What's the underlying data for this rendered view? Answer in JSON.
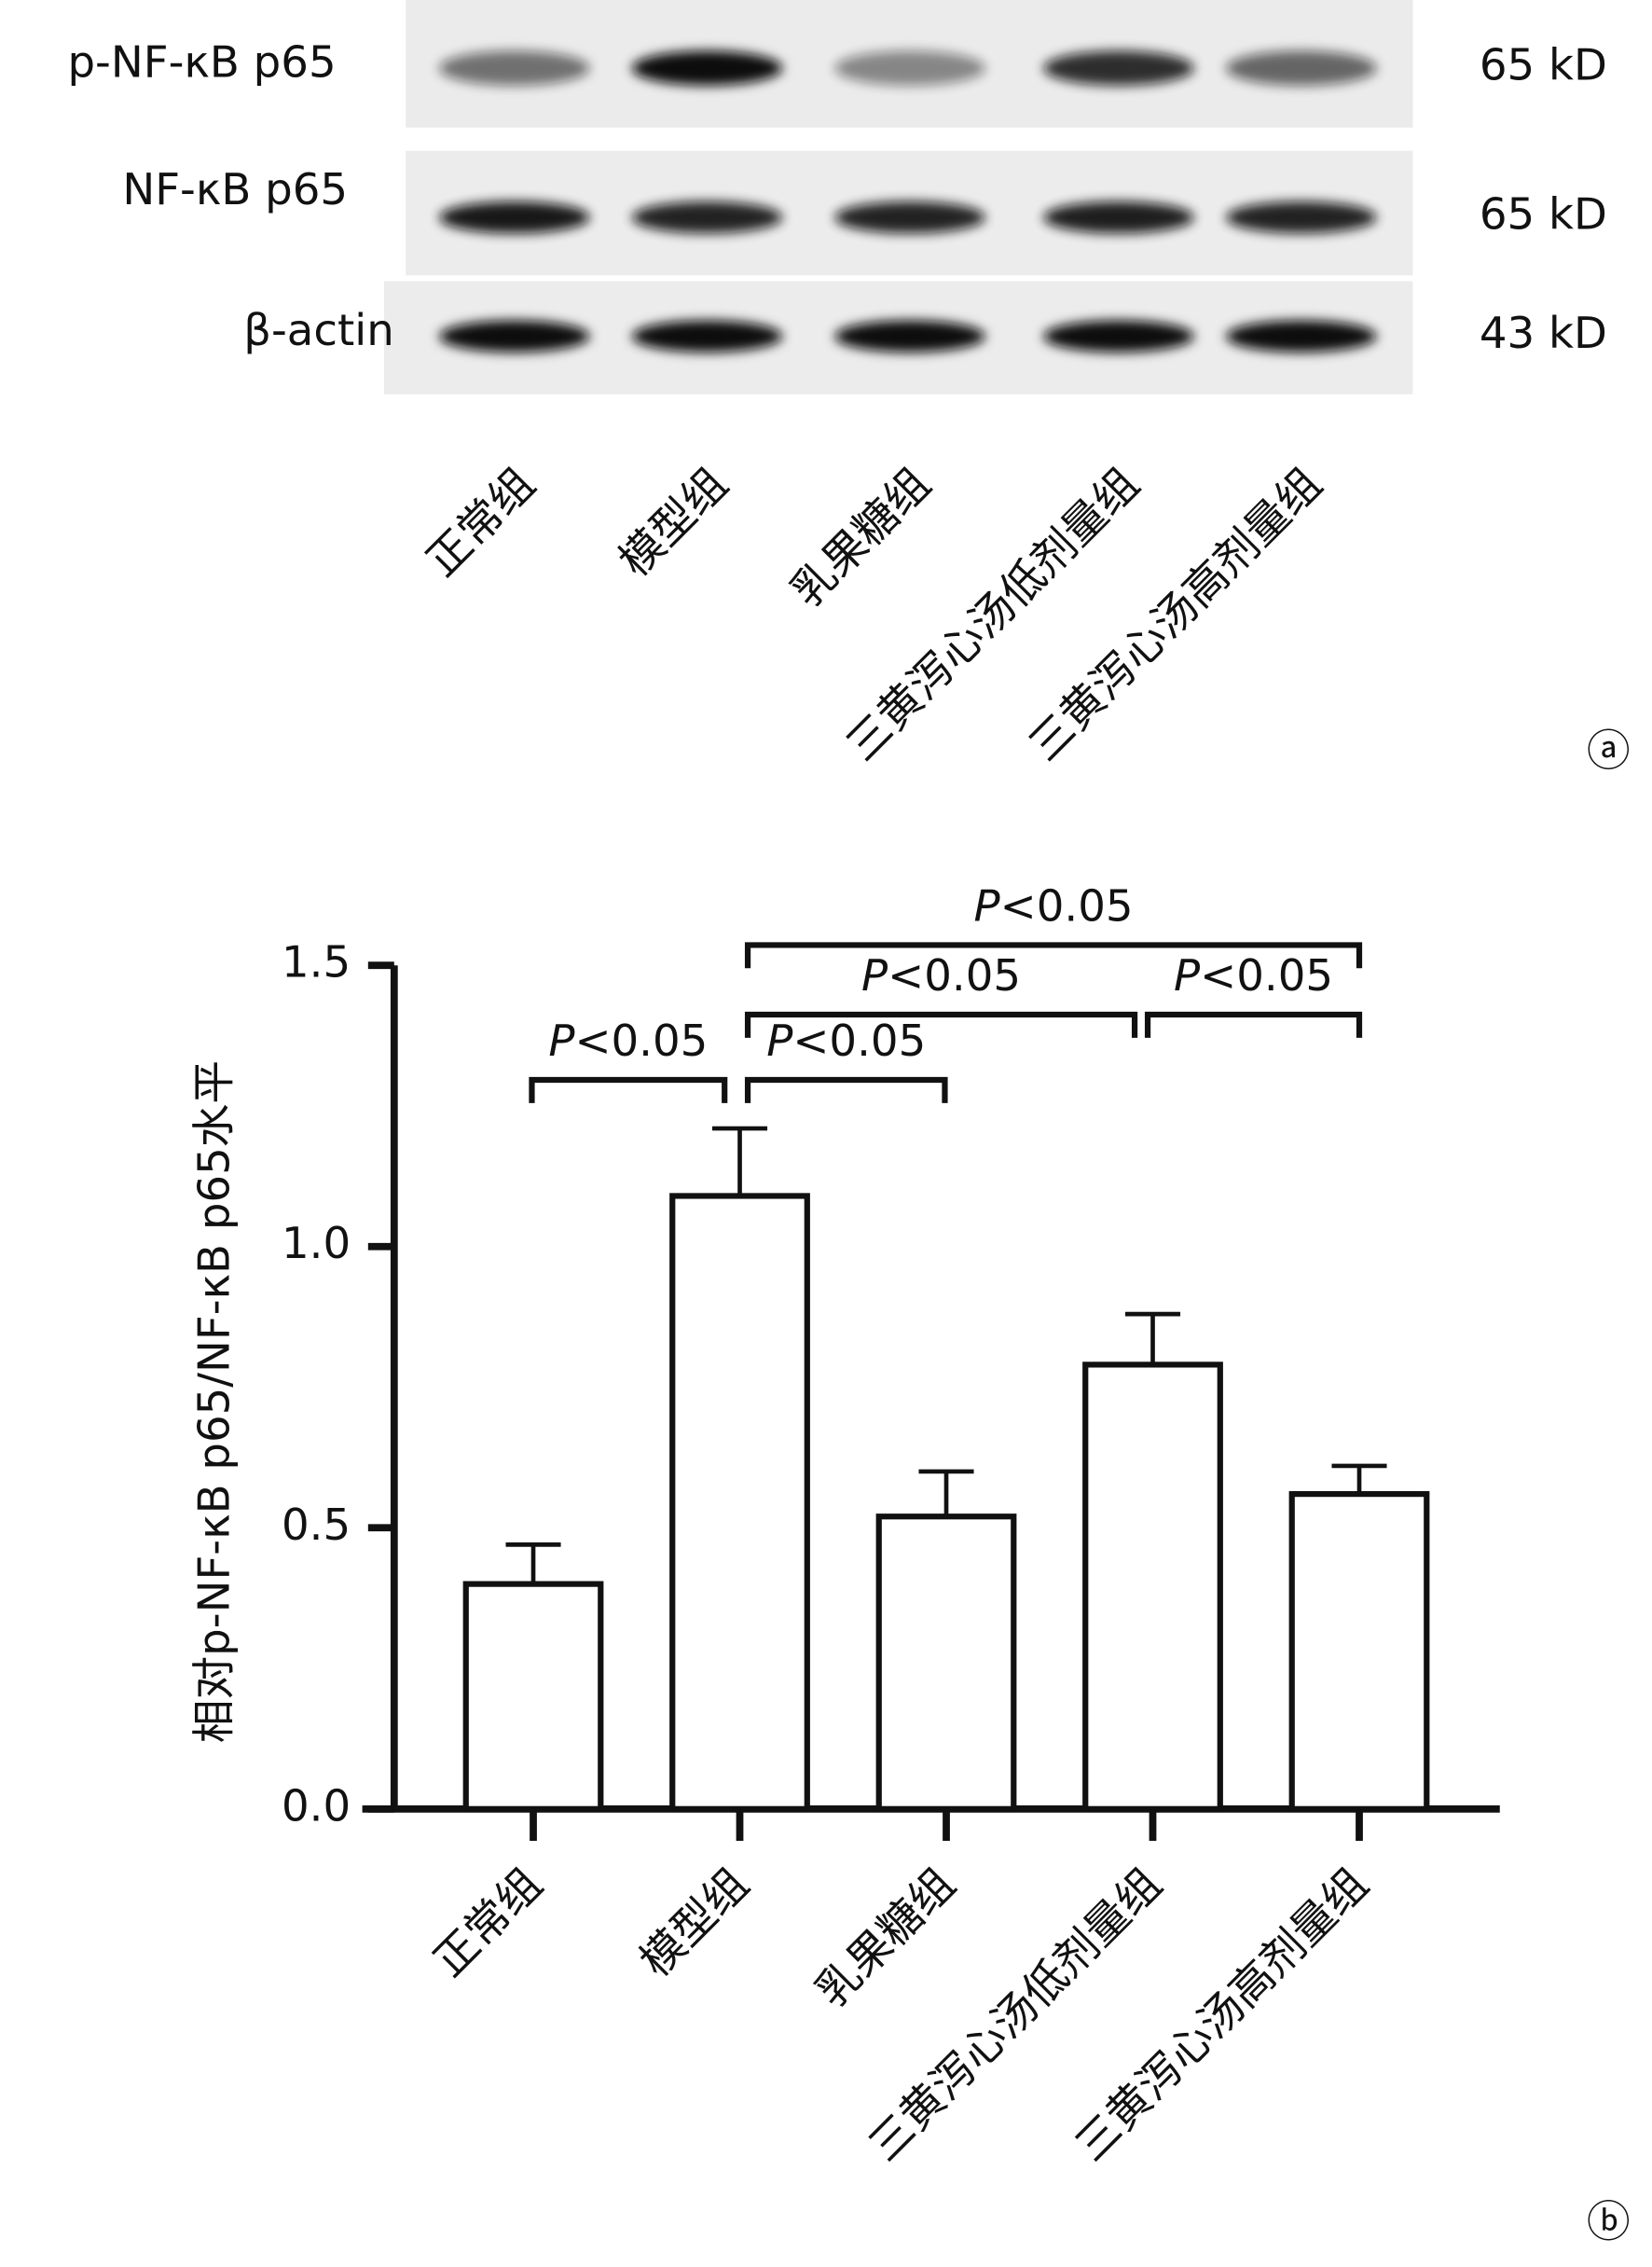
{
  "blot": {
    "rows": [
      {
        "label": "p-NF-κB p65",
        "size": "65 kD"
      },
      {
        "label": "NF-κB p65",
        "size": "65 kD"
      },
      {
        "label": "β-actin",
        "size": "43 kD"
      }
    ],
    "lanes": [
      "正常组",
      "模型组",
      "乳果糖组",
      "三黄泻心汤低剂量组",
      "三黄泻心汤高剂量组"
    ],
    "panel_label": "ⓐ"
  },
  "chart_data": {
    "type": "bar",
    "panel_label": "ⓑ",
    "y_label": "相对p-NF-κB p65/NF-κB p65水平",
    "categories": [
      "正常组",
      "模型组",
      "乳果糖组",
      "三黄泻心汤低剂量组",
      "三黄泻心汤高剂量组"
    ],
    "values": [
      0.4,
      1.09,
      0.52,
      0.79,
      0.56
    ],
    "errors": [
      0.07,
      0.12,
      0.08,
      0.09,
      0.05
    ],
    "color": "#ffffff",
    "ylim": [
      0,
      1.5
    ],
    "yticks": [
      {
        "value": 0,
        "label": "0.0"
      },
      {
        "value": 0.5,
        "label": "0.5"
      },
      {
        "value": 1,
        "label": "1.0"
      },
      {
        "value": 1.5,
        "label": "1.5"
      }
    ],
    "annotations": [
      "P<0.05",
      "P<0.05",
      "P<0.05",
      "P<0.05",
      "P<0.05"
    ]
  }
}
